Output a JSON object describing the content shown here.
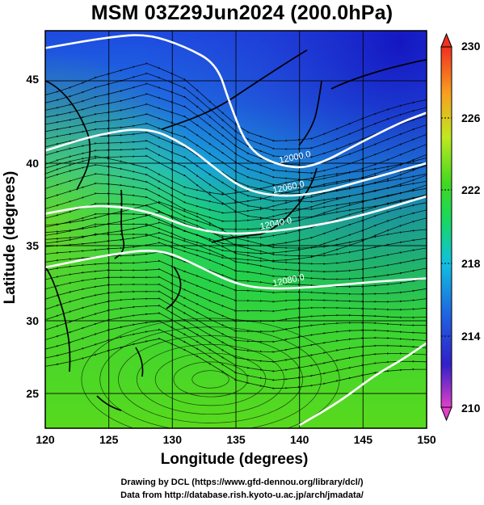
{
  "title": "MSM 03Z29Jun2024 (200.0hPa)",
  "chart_data": {
    "type": "map",
    "xlabel": "Longitude (degrees)",
    "ylabel": "Latitude  (degrees)",
    "xlim": [
      120,
      150
    ],
    "ylim": [
      22.4,
      47.6
    ],
    "x_ticks": [
      "120",
      "125",
      "130",
      "135",
      "140",
      "145",
      "150"
    ],
    "y_ticks": [
      "25",
      "30",
      "35",
      "40",
      "45"
    ],
    "colorbar": {
      "min": 210,
      "max": 230,
      "ticks": [
        "230",
        "226",
        "222",
        "218",
        "214",
        "210"
      ],
      "colormap": [
        "#e040c8",
        "#1e1ec8",
        "#2070e0",
        "#10c8e0",
        "#18d860",
        "#40d820",
        "#d0e820",
        "#f8a020",
        "#f03020"
      ]
    },
    "contours": [
      {
        "label": "12000.0",
        "lat_at": [
          [
            120,
            46.5
          ],
          [
            125,
            47.2
          ],
          [
            128,
            47.4
          ],
          [
            131,
            46.6
          ],
          [
            133.5,
            45.5
          ],
          [
            134.5,
            43
          ],
          [
            136,
            40
          ],
          [
            138.5,
            39
          ],
          [
            141,
            38.9
          ],
          [
            145,
            40.6
          ],
          [
            148,
            41.8
          ],
          [
            150,
            42.4
          ]
        ]
      },
      {
        "label": "12060.0",
        "lat_at": [
          [
            120,
            40
          ],
          [
            124,
            41
          ],
          [
            128,
            41.5
          ],
          [
            131,
            40.4
          ],
          [
            133.5,
            38.8
          ],
          [
            135.5,
            37.6
          ],
          [
            138,
            37.1
          ],
          [
            141,
            37.2
          ],
          [
            145,
            38.1
          ],
          [
            150,
            39.2
          ]
        ]
      },
      {
        "label": "12040.0",
        "lat_at": [
          [
            120,
            36
          ],
          [
            124,
            36.6
          ],
          [
            128,
            36.2
          ],
          [
            131,
            35.2
          ],
          [
            134,
            34.7
          ],
          [
            137,
            34.8
          ],
          [
            141,
            35.2
          ],
          [
            145,
            35.9
          ],
          [
            150,
            37.1
          ]
        ]
      },
      {
        "label": "12080.0",
        "lat_at": [
          [
            120,
            32.6
          ],
          [
            125,
            33.4
          ],
          [
            129,
            33.8
          ],
          [
            132,
            32.7
          ],
          [
            135,
            31.5
          ],
          [
            138,
            31.2
          ],
          [
            142,
            31.4
          ],
          [
            146,
            31.7
          ],
          [
            150,
            31.9
          ]
        ]
      },
      {
        "label": "",
        "lat_at": [
          [
            140,
            22.6
          ],
          [
            143,
            24
          ],
          [
            146,
            25.8
          ],
          [
            148,
            26.7
          ],
          [
            150,
            27.8
          ]
        ]
      }
    ]
  },
  "credits": [
    "Drawing by DCL (https://www.gfd-dennou.org/library/dcl/)",
    "Data from http://database.rish.kyoto-u.ac.jp/arch/jmadata/"
  ]
}
